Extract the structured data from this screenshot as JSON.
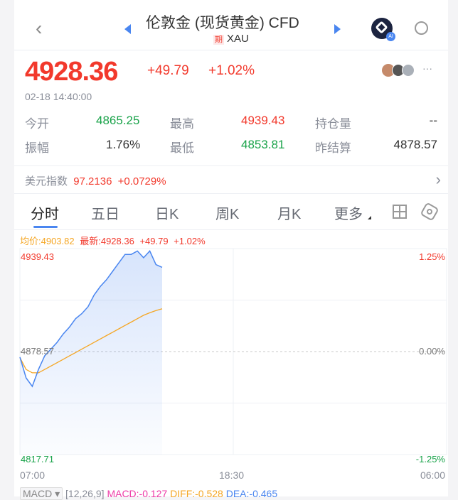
{
  "header": {
    "title": "伦敦金 (现货黄金) CFD",
    "badge": "期",
    "symbol": "XAU",
    "ai_label": "AI"
  },
  "quote": {
    "price": "4928.36",
    "change": "+49.79",
    "change_pct": "+1.02%",
    "time": "02-18 14:40:00"
  },
  "stats": [
    {
      "label": "今开",
      "value": "4865.25",
      "color": "green"
    },
    {
      "label": "最高",
      "value": "4939.43",
      "color": "red"
    },
    {
      "label": "持仓量",
      "value": "--",
      "color": "dark"
    },
    {
      "label": "振幅",
      "value": "1.76%",
      "color": "dark"
    },
    {
      "label": "最低",
      "value": "4853.81",
      "color": "green"
    },
    {
      "label": "昨结算",
      "value": "4878.57",
      "color": "dark"
    }
  ],
  "usd_index": {
    "label": "美元指数",
    "value": "97.2136",
    "change": "+0.0729%"
  },
  "tabs": [
    "分时",
    "五日",
    "日K",
    "周K",
    "月K",
    "更多"
  ],
  "active_tab": 0,
  "legend": {
    "avg": "均价:4903.82",
    "latest": "最新:4928.36",
    "change": "+49.79",
    "pct": "+1.02%"
  },
  "axes": {
    "top": "4939.43",
    "mid": "4878.57",
    "bottom": "4817.71",
    "top_pct": "1.25%",
    "mid_pct": "0.00%",
    "bottom_pct": "-1.25%",
    "times": [
      "07:00",
      "18:30",
      "06:00"
    ]
  },
  "macd": {
    "selector": "MACD",
    "params": "[12,26,9]",
    "macd": "MACD:-0.127",
    "diff": "DIFF:-0.528",
    "dea": "DEA:-0.465"
  },
  "colors": {
    "up": "#f2392c",
    "down": "#1aa34a",
    "price_line": "#4a86f0",
    "avg_line": "#f5a623",
    "accent": "#4a86f0"
  },
  "chart_data": {
    "type": "line",
    "ylim": [
      4817.71,
      4939.43
    ],
    "reference": 4878.57,
    "x_range": [
      "07:00",
      "06:00"
    ],
    "x": [
      "07:00",
      "07:20",
      "07:40",
      "08:00",
      "08:20",
      "08:40",
      "09:00",
      "09:20",
      "09:40",
      "10:00",
      "10:20",
      "10:40",
      "11:00",
      "11:20",
      "11:40",
      "12:00",
      "12:20",
      "12:40",
      "13:00",
      "13:20",
      "13:40",
      "14:00",
      "14:20",
      "14:40"
    ],
    "series": [
      {
        "name": "最新",
        "values": [
          4875.3,
          4863,
          4858,
          4868,
          4876,
          4880,
          4884,
          4889,
          4893,
          4898,
          4901,
          4905,
          4912,
          4917,
          4921,
          4926,
          4931,
          4936,
          4936,
          4938,
          4934,
          4938,
          4930,
          4928.36
        ]
      },
      {
        "name": "均价",
        "values": [
          4875,
          4868,
          4866,
          4866,
          4868,
          4870,
          4872,
          4874,
          4876,
          4878,
          4880,
          4882,
          4884,
          4886,
          4888,
          4890,
          4892,
          4894,
          4896,
          4898,
          4900,
          4901.5,
          4902.8,
          4903.82
        ]
      }
    ]
  }
}
